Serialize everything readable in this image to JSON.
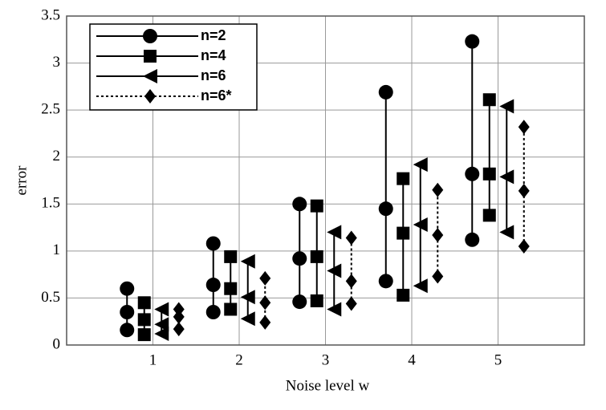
{
  "chart_data": {
    "type": "range",
    "x_label": "Noise level w",
    "y_label": "error",
    "categories": [
      1,
      2,
      3,
      4,
      5
    ],
    "xlim": [
      0,
      6
    ],
    "xticks": [
      1,
      2,
      3,
      4,
      5
    ],
    "ylim": [
      0,
      3.5
    ],
    "yticks": [
      0,
      0.5,
      1,
      1.5,
      2,
      2.5,
      3,
      3.5
    ],
    "grid": true,
    "legend": "upper left",
    "series": [
      {
        "name": "n=2",
        "marker": "circle",
        "dashed": false,
        "color": "#000000",
        "high": [
          0.6,
          1.08,
          1.5,
          2.69,
          3.23
        ],
        "values": [
          0.35,
          0.64,
          0.92,
          1.45,
          1.82
        ],
        "low": [
          0.16,
          0.35,
          0.46,
          0.68,
          1.12
        ]
      },
      {
        "name": "n=4",
        "marker": "square",
        "dashed": false,
        "color": "#000000",
        "high": [
          0.45,
          0.94,
          1.48,
          1.77,
          2.61
        ],
        "values": [
          0.27,
          0.6,
          0.94,
          1.19,
          1.82
        ],
        "low": [
          0.11,
          0.38,
          0.47,
          0.53,
          1.38
        ]
      },
      {
        "name": "n=6",
        "marker": "triangle-left",
        "dashed": false,
        "color": "#000000",
        "high": [
          0.38,
          0.89,
          1.2,
          1.92,
          2.54
        ],
        "values": [
          0.22,
          0.51,
          0.79,
          1.28,
          1.79
        ],
        "low": [
          0.12,
          0.28,
          0.38,
          0.63,
          1.2
        ]
      },
      {
        "name": "n=6*",
        "marker": "diamond",
        "dashed": true,
        "color": "#000000",
        "high": [
          0.38,
          0.71,
          1.14,
          1.65,
          2.32
        ],
        "values": [
          0.3,
          0.45,
          0.68,
          1.17,
          1.64
        ],
        "low": [
          0.17,
          0.24,
          0.44,
          0.73,
          1.05
        ]
      }
    ]
  }
}
